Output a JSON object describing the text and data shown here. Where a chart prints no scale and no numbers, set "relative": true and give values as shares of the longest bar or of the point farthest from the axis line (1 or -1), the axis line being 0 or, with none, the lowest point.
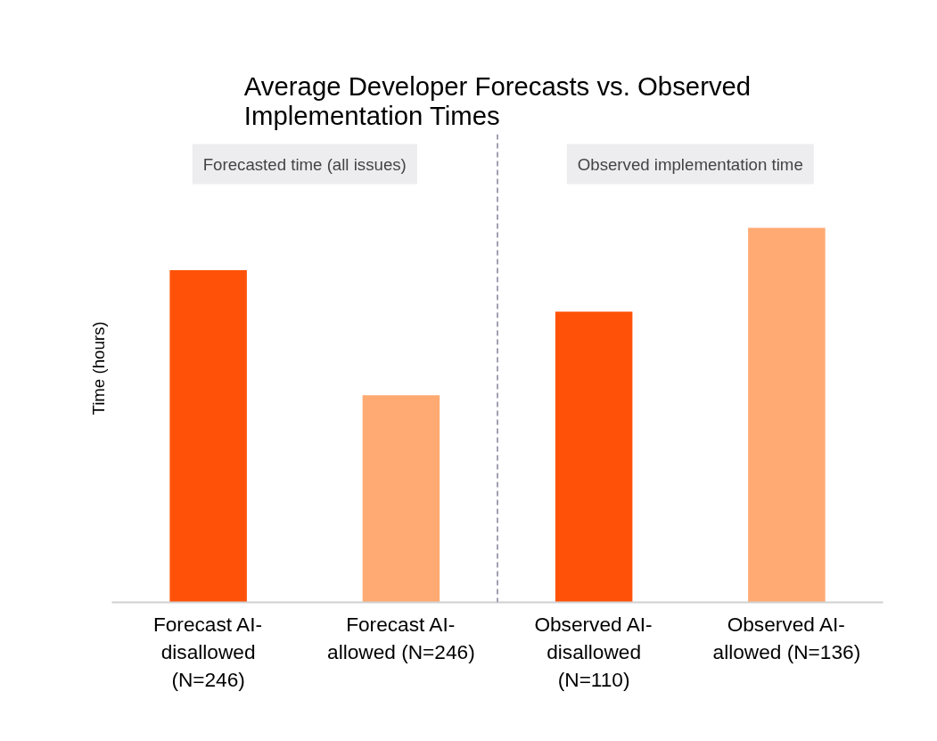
{
  "chart_data": {
    "type": "bar",
    "title": "Average Developer Forecasts vs. Observed\nImplementation Times",
    "ylabel": "Time (hours)",
    "categories": [
      "Forecast AI-\ndisallowed\n(N=246)",
      "Forecast AI-\nallowed (N=246)",
      "Observed AI-\ndisallowed\n(N=110)",
      "Observed AI-\nallowed (N=136)"
    ],
    "values": [
      0.887,
      0.553,
      0.776,
      1
    ],
    "colors": [
      "#ff5208",
      "#ffaa72",
      "#ff5208",
      "#ffaa72"
    ],
    "relative": true,
    "annotations": [
      "Forecasted time (all issues)",
      "Observed implementation time"
    ]
  }
}
